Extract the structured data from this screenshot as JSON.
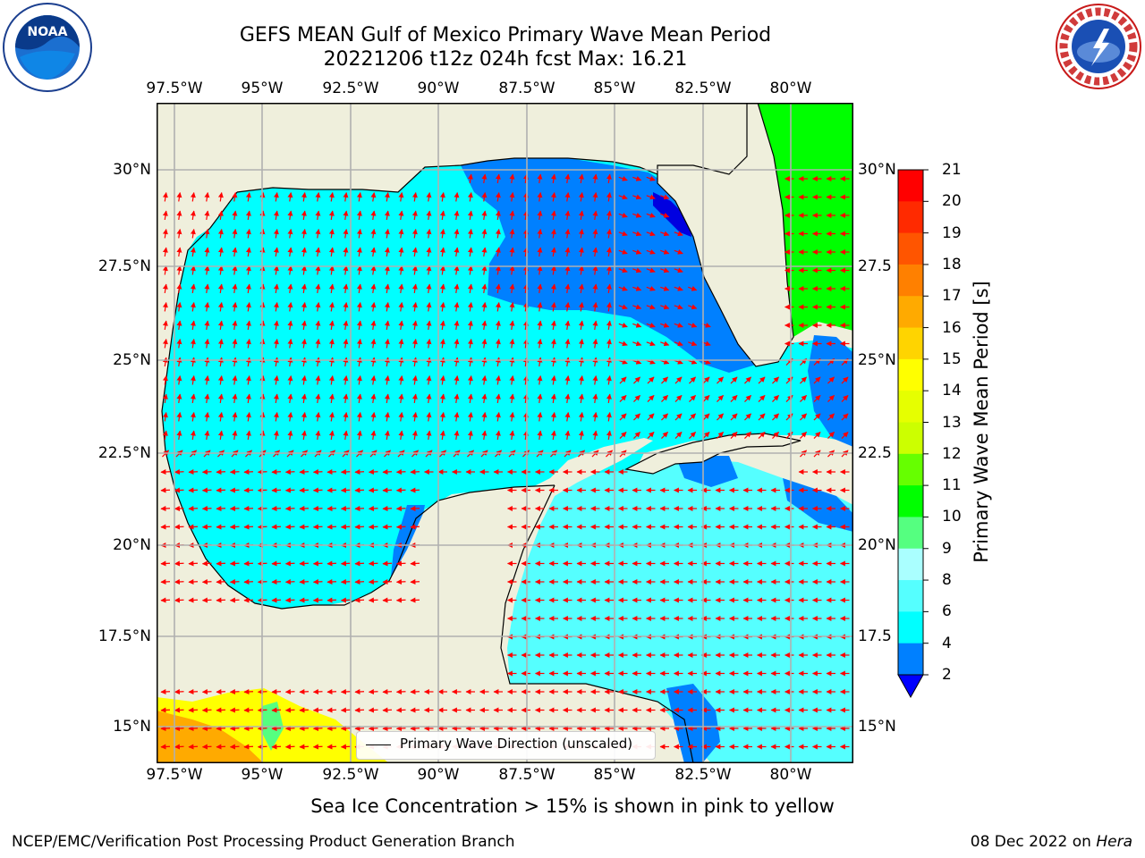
{
  "title": {
    "line1": "GEFS MEAN Gulf of Mexico Primary Wave Mean Period",
    "line2": "20221206 t12z 024h fcst   Max: 16.21"
  },
  "lon_labels_top": [
    "97.5°W",
    "95°W",
    "92.5°W",
    "90°W",
    "87.5°W",
    "85°W",
    "82.5°W",
    "80°W"
  ],
  "lon_labels_bottom": [
    "97.5°W",
    "95°W",
    "92.5°W",
    "90°W",
    "87.5°W",
    "85°W",
    "82.5°W",
    "80°W"
  ],
  "lat_labels_left": [
    "30°N",
    "27.5°N",
    "25°N",
    "22.5°N",
    "20°N",
    "17.5°N",
    "15°N"
  ],
  "lat_labels_right": [
    "30°N",
    "27.5",
    "25°N",
    "22.5",
    "20°N",
    "17.5",
    "15°N"
  ],
  "colorbar": {
    "label": "Primary Wave Mean Period [s]",
    "ticks": [
      "21",
      "20",
      "19",
      "18",
      "17",
      "16",
      "15",
      "14",
      "13",
      "12",
      "11",
      "10",
      "9",
      "8",
      "6",
      "4",
      "2"
    ],
    "colors": [
      "#ff0000",
      "#ff2a00",
      "#ff5500",
      "#ff8000",
      "#ffaa00",
      "#ffd400",
      "#ffff00",
      "#e6ff00",
      "#ccff00",
      "#66ff00",
      "#00ff00",
      "#55ff80",
      "#aaffff",
      "#55ffff",
      "#00ffff",
      "#0080ff"
    ],
    "extend_color": "#0000ff"
  },
  "legend": {
    "text": "Primary Wave Direction (unscaled)"
  },
  "logos": {
    "noaa": "NOAA",
    "nws": "NATIONAL WEATHER SERVICE"
  },
  "colors": {
    "land": "#efefdc",
    "grid": "#b0b0b0",
    "arrow": "#ff0000",
    "water_main": "#00ffff",
    "water_deep": "#0080ff"
  },
  "footer": {
    "note": "Sea Ice Concentration > 15% is shown in pink to yellow",
    "left": "NCEP/EMC/Verification Post Processing Product Generation Branch",
    "date": "08 Dec 2022 on",
    "host": "Hera"
  }
}
